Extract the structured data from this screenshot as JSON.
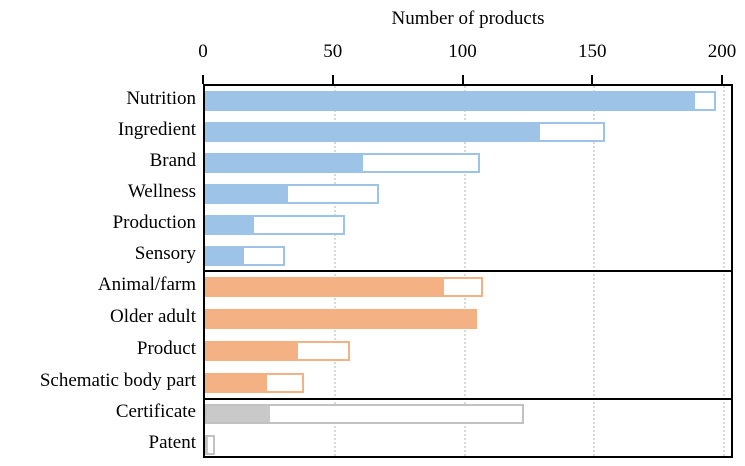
{
  "chart_data": {
    "type": "bar",
    "orientation": "horizontal",
    "title": "Number of products",
    "xlabel": "Number of products",
    "ylabel": "",
    "xlim": [
      0,
      200
    ],
    "xticks": [
      0,
      50,
      100,
      150,
      200
    ],
    "grid": "vertical dotted gridlines at each x tick, behind bars",
    "legend": "none",
    "bar_style": "each bar has a solid filled segment (filled) and a white outlined segment extending to the total value",
    "axis_position": "top",
    "groups": [
      {
        "name": "group-1",
        "fill_color": "#9dc3e6",
        "border_color": "#9dc3e6",
        "bars": [
          {
            "label": "Nutrition",
            "filled": 189,
            "total": 197
          },
          {
            "label": "Ingredient",
            "filled": 129,
            "total": 154
          },
          {
            "label": "Brand",
            "filled": 61,
            "total": 106
          },
          {
            "label": "Wellness",
            "filled": 32,
            "total": 67
          },
          {
            "label": "Production",
            "filled": 19,
            "total": 54
          },
          {
            "label": "Sensory",
            "filled": 15,
            "total": 31
          }
        ]
      },
      {
        "name": "group-2",
        "fill_color": "#f4b183",
        "border_color": "#f4b183",
        "bars": [
          {
            "label": "Animal/farm",
            "filled": 92,
            "total": 107
          },
          {
            "label": "Older adult",
            "filled": 105,
            "total": 105
          },
          {
            "label": "Product",
            "filled": 36,
            "total": 56
          },
          {
            "label": "Schematic body part",
            "filled": 24,
            "total": 38
          }
        ]
      },
      {
        "name": "group-3",
        "fill_color": "#c9c9c9",
        "border_color": "#c2c2c2",
        "bars": [
          {
            "label": "Certificate",
            "filled": 25,
            "total": 123
          },
          {
            "label": "Patent",
            "filled": 1,
            "total": 4
          }
        ]
      }
    ]
  },
  "colors": {
    "axis": "#000000",
    "gridline": "#d9d9d9",
    "background": "#ffffff"
  }
}
